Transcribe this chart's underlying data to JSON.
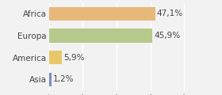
{
  "categories": [
    "Asia",
    "America",
    "Europa",
    "Africa"
  ],
  "values": [
    1.2,
    5.9,
    45.9,
    47.1
  ],
  "labels": [
    "1,2%",
    "5,9%",
    "45,9%",
    "47,1%"
  ],
  "colors": [
    "#7b8cc4",
    "#e8c76a",
    "#b5c98a",
    "#e8b87a"
  ],
  "xlim": [
    0,
    65
  ],
  "background_color": "#f2f2f2",
  "bar_height": 0.62,
  "label_fontsize": 7.5,
  "tick_fontsize": 7.5
}
